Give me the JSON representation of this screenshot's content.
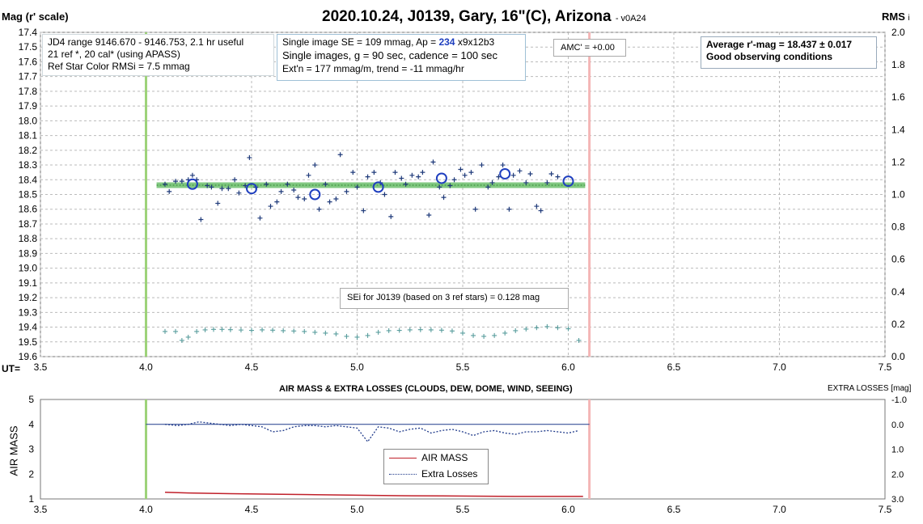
{
  "header": {
    "title": "2020.10.24, J0139, Gary, 16\"(C), Arizona",
    "version": "- v0A24",
    "left_axis_title": "Mag (r' scale)",
    "right_axis_title": "RMS",
    "right_axis_suffix": "i",
    "ut_label": "UT="
  },
  "info_left": {
    "line1": "JD4 range 9146.670 - 9146.753, 2.1 hr useful",
    "line2": "21 ref *, 20 cal* (using APASS)",
    "line3": "Ref Star Color RMSi = 7.5 mmag"
  },
  "info_mid": {
    "line1_prefix": "Single image SE = 109 mmag, Ap = ",
    "line1_ap": "234",
    "line1_suffix": " x9x12b3",
    "line2": "Single images, g = 90 sec, cadence = 100 sec",
    "line3": "Ext'n = 177 mmag/m, trend = -11 mmag/hr"
  },
  "amc_label": "AMC' = +0.00",
  "avg_box": {
    "line1": "Average r'-mag =  18.437 ± 0.017",
    "line2": "Good observing conditions"
  },
  "sei_label": "SEi for J0139 (based on 3 ref stars) = 0.128 mag",
  "bottom": {
    "title": "AIR MASS & EXTRA LOSSES (CLOUDS, DEW, DOME, WIND, SEEING)",
    "right_title": "EXTRA LOSSES [mag]",
    "left_axis_title": "AIR MASS",
    "legend": [
      "AIR MASS",
      "Extra Losses"
    ]
  },
  "colors": {
    "points": "#1f3a7a",
    "circles": "#1f3fbf",
    "avg_band": "#6dbf6d",
    "rms": "#5a9e9e",
    "green_line": "#9ed37a",
    "red_line": "#f4b6b6",
    "airmass": "#c0202a",
    "losses": "#1f3a8a"
  },
  "chart_data": [
    {
      "type": "scatter",
      "name": "magnitude",
      "xlim": [
        3.5,
        7.5
      ],
      "ylim_left": [
        17.4,
        19.6
      ],
      "ylim_right": [
        0.0,
        2.0
      ],
      "left_axis_reversed": true,
      "grid": true,
      "x_ticks": [
        "3.5",
        "4.0",
        "4.5",
        "5.0",
        "5.5",
        "6.0",
        "6.5",
        "7.0",
        "7.5"
      ],
      "y_ticks_left": [
        "17.4",
        "17.5",
        "17.6",
        "17.7",
        "17.8",
        "17.9",
        "18.0",
        "18.1",
        "18.2",
        "18.3",
        "18.4",
        "18.5",
        "18.6",
        "18.7",
        "18.8",
        "18.9",
        "19.0",
        "19.1",
        "19.2",
        "19.3",
        "19.4",
        "19.5",
        "19.6"
      ],
      "y_ticks_right": [
        "2.0",
        "1.8",
        "1.6",
        "1.4",
        "1.2",
        "1.0",
        "0.8",
        "0.6",
        "0.4",
        "0.2",
        "0.0"
      ],
      "vlines": [
        4.0,
        6.1
      ],
      "average": 18.437,
      "points": [
        [
          4.09,
          18.43
        ],
        [
          4.11,
          18.48
        ],
        [
          4.14,
          18.41
        ],
        [
          4.17,
          18.41
        ],
        [
          4.2,
          18.4
        ],
        [
          4.22,
          18.37
        ],
        [
          4.24,
          18.4
        ],
        [
          4.26,
          18.67
        ],
        [
          4.29,
          18.44
        ],
        [
          4.31,
          18.45
        ],
        [
          4.34,
          18.56
        ],
        [
          4.36,
          18.46
        ],
        [
          4.39,
          18.46
        ],
        [
          4.42,
          18.4
        ],
        [
          4.44,
          18.49
        ],
        [
          4.47,
          18.44
        ],
        [
          4.49,
          18.25
        ],
        [
          4.52,
          18.45
        ],
        [
          4.54,
          18.66
        ],
        [
          4.57,
          18.43
        ],
        [
          4.59,
          18.58
        ],
        [
          4.62,
          18.55
        ],
        [
          4.64,
          18.48
        ],
        [
          4.67,
          18.43
        ],
        [
          4.7,
          18.47
        ],
        [
          4.72,
          18.52
        ],
        [
          4.75,
          18.53
        ],
        [
          4.77,
          18.37
        ],
        [
          4.8,
          18.3
        ],
        [
          4.82,
          18.6
        ],
        [
          4.85,
          18.43
        ],
        [
          4.87,
          18.55
        ],
        [
          4.9,
          18.53
        ],
        [
          4.92,
          18.23
        ],
        [
          4.95,
          18.48
        ],
        [
          4.98,
          18.35
        ],
        [
          5.0,
          18.45
        ],
        [
          5.03,
          18.61
        ],
        [
          5.05,
          18.38
        ],
        [
          5.08,
          18.35
        ],
        [
          5.11,
          18.42
        ],
        [
          5.13,
          18.5
        ],
        [
          5.16,
          18.65
        ],
        [
          5.18,
          18.35
        ],
        [
          5.21,
          18.39
        ],
        [
          5.23,
          18.43
        ],
        [
          5.26,
          18.37
        ],
        [
          5.29,
          18.38
        ],
        [
          5.31,
          18.35
        ],
        [
          5.34,
          18.64
        ],
        [
          5.36,
          18.28
        ],
        [
          5.39,
          18.45
        ],
        [
          5.41,
          18.52
        ],
        [
          5.44,
          18.44
        ],
        [
          5.46,
          18.4
        ],
        [
          5.49,
          18.33
        ],
        [
          5.51,
          18.37
        ],
        [
          5.54,
          18.35
        ],
        [
          5.56,
          18.6
        ],
        [
          5.59,
          18.3
        ],
        [
          5.62,
          18.45
        ],
        [
          5.64,
          18.42
        ],
        [
          5.67,
          18.38
        ],
        [
          5.69,
          18.3
        ],
        [
          5.72,
          18.6
        ],
        [
          5.74,
          18.37
        ],
        [
          5.77,
          18.34
        ],
        [
          5.8,
          18.42
        ],
        [
          5.82,
          18.36
        ],
        [
          5.85,
          18.58
        ],
        [
          5.87,
          18.61
        ],
        [
          5.9,
          18.42
        ],
        [
          5.92,
          18.36
        ],
        [
          5.95,
          18.38
        ]
      ],
      "binned": [
        [
          4.22,
          18.43
        ],
        [
          4.5,
          18.46
        ],
        [
          4.8,
          18.5
        ],
        [
          5.1,
          18.45
        ],
        [
          5.4,
          18.39
        ],
        [
          5.7,
          18.36
        ],
        [
          6.0,
          18.41
        ]
      ],
      "rms_series": [
        [
          4.09,
          0.155
        ],
        [
          4.14,
          0.155
        ],
        [
          4.17,
          0.1
        ],
        [
          4.2,
          0.12
        ],
        [
          4.24,
          0.155
        ],
        [
          4.28,
          0.165
        ],
        [
          4.32,
          0.168
        ],
        [
          4.36,
          0.168
        ],
        [
          4.4,
          0.166
        ],
        [
          4.45,
          0.164
        ],
        [
          4.5,
          0.162
        ],
        [
          4.55,
          0.165
        ],
        [
          4.6,
          0.163
        ],
        [
          4.65,
          0.16
        ],
        [
          4.7,
          0.158
        ],
        [
          4.75,
          0.155
        ],
        [
          4.8,
          0.15
        ],
        [
          4.85,
          0.145
        ],
        [
          4.9,
          0.14
        ],
        [
          4.95,
          0.125
        ],
        [
          5.0,
          0.12
        ],
        [
          5.05,
          0.13
        ],
        [
          5.1,
          0.15
        ],
        [
          5.15,
          0.16
        ],
        [
          5.2,
          0.162
        ],
        [
          5.25,
          0.165
        ],
        [
          5.3,
          0.166
        ],
        [
          5.35,
          0.165
        ],
        [
          5.4,
          0.163
        ],
        [
          5.45,
          0.158
        ],
        [
          5.5,
          0.145
        ],
        [
          5.55,
          0.13
        ],
        [
          5.6,
          0.125
        ],
        [
          5.65,
          0.13
        ],
        [
          5.7,
          0.145
        ],
        [
          5.75,
          0.16
        ],
        [
          5.8,
          0.17
        ],
        [
          5.85,
          0.178
        ],
        [
          5.9,
          0.185
        ],
        [
          5.95,
          0.178
        ],
        [
          6.0,
          0.172
        ],
        [
          6.05,
          0.1
        ]
      ]
    },
    {
      "type": "line",
      "name": "airmass_losses",
      "xlim": [
        3.5,
        7.5
      ],
      "ylim_left": [
        1,
        5
      ],
      "ylim_right": [
        3.0,
        -1.0
      ],
      "x_ticks": [
        "3.5",
        "4.0",
        "4.5",
        "5.0",
        "5.5",
        "6.0",
        "6.5",
        "7.0",
        "7.5"
      ],
      "y_ticks_left": [
        "1",
        "2",
        "3",
        "4",
        "5"
      ],
      "y_ticks_right": [
        "-1.0",
        "0.0",
        "1.0",
        "2.0",
        "3.0"
      ],
      "vlines": [
        4.0,
        6.1
      ],
      "series": [
        {
          "name": "AIR MASS",
          "x": [
            4.09,
            4.2,
            4.4,
            4.6,
            4.8,
            5.0,
            5.2,
            5.4,
            5.6,
            5.8,
            6.07
          ],
          "y": [
            1.27,
            1.24,
            1.21,
            1.19,
            1.17,
            1.15,
            1.13,
            1.12,
            1.11,
            1.1,
            1.1
          ]
        },
        {
          "name": "Extra Losses",
          "x": [
            4.09,
            4.15,
            4.2,
            4.25,
            4.3,
            4.35,
            4.4,
            4.45,
            4.5,
            4.55,
            4.6,
            4.65,
            4.7,
            4.75,
            4.8,
            4.85,
            4.9,
            4.95,
            5.0,
            5.05,
            5.1,
            5.15,
            5.2,
            5.25,
            5.3,
            5.35,
            5.4,
            5.45,
            5.5,
            5.55,
            5.6,
            5.65,
            5.7,
            5.75,
            5.8,
            5.85,
            5.9,
            5.95,
            6.0,
            6.05
          ],
          "y": [
            0.0,
            0.05,
            0.0,
            -0.1,
            -0.05,
            0.0,
            0.05,
            0.0,
            0.05,
            0.1,
            0.3,
            0.25,
            0.1,
            0.05,
            0.05,
            0.1,
            0.05,
            0.1,
            0.15,
            0.7,
            0.1,
            0.15,
            0.3,
            0.2,
            0.15,
            0.35,
            0.25,
            0.2,
            0.3,
            0.45,
            0.3,
            0.25,
            0.35,
            0.4,
            0.3,
            0.3,
            0.25,
            0.3,
            0.35,
            0.25
          ]
        },
        {
          "name": "baseline",
          "x": [
            4.0,
            6.1
          ],
          "y": [
            0.0,
            0.0
          ]
        }
      ]
    }
  ]
}
